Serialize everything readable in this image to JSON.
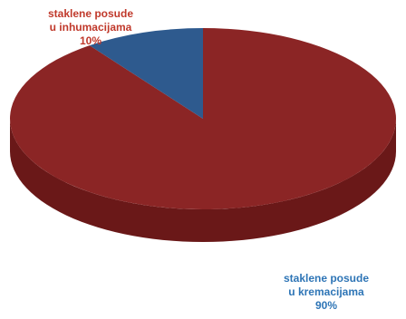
{
  "chart_data": {
    "type": "pie",
    "slices": [
      {
        "label": [
          "staklene posude",
          "u kremacijama"
        ],
        "value": 90,
        "pct": "90%",
        "color": "#8b2525",
        "side": "#6a1818"
      },
      {
        "label": [
          "staklene posude",
          "u inhumacijama"
        ],
        "value": 10,
        "pct": "10%",
        "color": "#2e5a8e",
        "side": "#1f3f66"
      }
    ],
    "label_colors": {
      "a": "#c0392b",
      "b": "#2e75b6"
    }
  }
}
